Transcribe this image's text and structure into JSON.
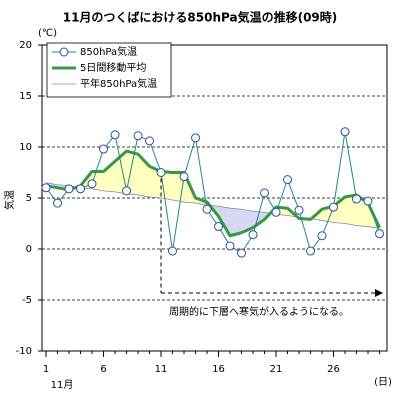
{
  "chart_data": {
    "type": "line",
    "title": "11月のつくばにおける850hPa気温の推移(09時)",
    "y_label": "気温",
    "y_unit": "(℃)",
    "x_label": "11月",
    "x_unit": "(日)",
    "x": [
      1,
      2,
      3,
      4,
      5,
      6,
      7,
      8,
      9,
      10,
      11,
      12,
      13,
      14,
      15,
      16,
      17,
      18,
      19,
      20,
      21,
      22,
      23,
      24,
      25,
      26,
      27,
      28,
      29,
      30
    ],
    "series": [
      {
        "name": "850hPa気温",
        "color": "#1f8a8a",
        "marker_color": "#2f4f9f",
        "values": [
          6.0,
          4.5,
          5.9,
          5.9,
          6.4,
          9.8,
          11.2,
          5.7,
          11.1,
          10.6,
          7.5,
          -0.2,
          7.1,
          10.9,
          3.9,
          2.2,
          0.3,
          -0.4,
          1.4,
          5.5,
          3.6,
          6.8,
          3.8,
          -0.2,
          1.3,
          4.1,
          11.5,
          4.9,
          4.7,
          1.5
        ]
      },
      {
        "name": "5日間移動平均",
        "color": "#339944",
        "values": [
          6.2,
          6.0,
          5.8,
          6.2,
          7.6,
          7.6,
          8.6,
          9.6,
          9.3,
          8.1,
          7.6,
          7.5,
          7.5,
          5.0,
          4.6,
          3.2,
          1.3,
          1.6,
          2.1,
          2.9,
          4.1,
          4.0,
          3.0,
          2.9,
          3.9,
          4.2,
          5.1,
          5.3,
          4.5,
          2.1
        ]
      },
      {
        "name": "平年850hPa気温",
        "color": "#8888aa",
        "values": [
          6.5,
          6.3,
          6.2,
          6.0,
          5.9,
          5.7,
          5.6,
          5.4,
          5.3,
          5.1,
          5.0,
          4.8,
          4.6,
          4.5,
          4.3,
          4.2,
          4.0,
          3.9,
          3.7,
          3.6,
          3.4,
          3.3,
          3.1,
          3.0,
          2.8,
          2.6,
          2.5,
          2.3,
          2.2,
          2.0
        ]
      }
    ],
    "above_color": "#ffffc0",
    "below_color": "#d8d8f4",
    "xlim": [
      0.65,
      30.65
    ],
    "xticks": [
      1,
      6,
      11,
      16,
      21,
      26
    ],
    "ylim": [
      -10,
      20
    ],
    "yticks": [
      -10,
      -5,
      0,
      5,
      10,
      15,
      20
    ],
    "grid": true,
    "annotation": {
      "text": "周期的に下層へ寒気が入るようになる。",
      "x": 11
    }
  }
}
